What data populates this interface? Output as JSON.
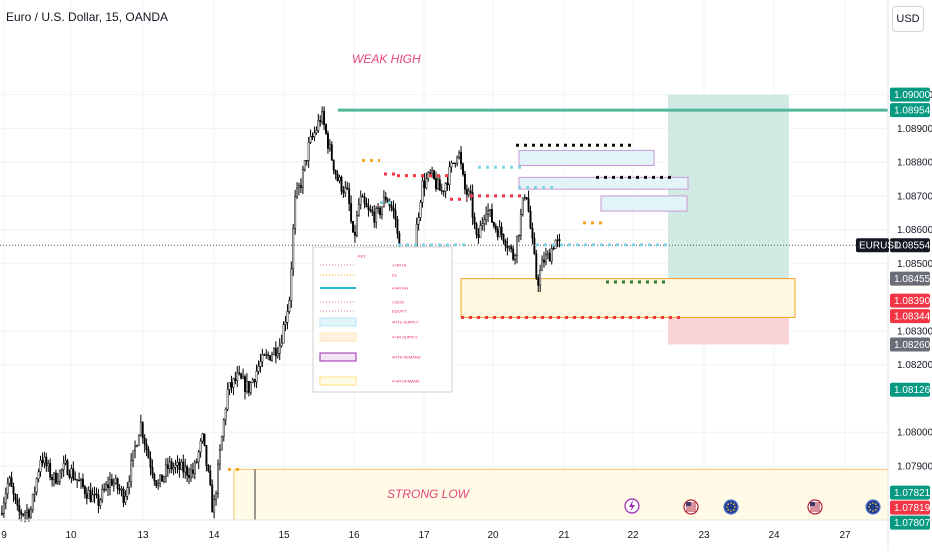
{
  "header": {
    "title": "Euro / U.S. Dollar, 15, OANDA",
    "currency_button": "USD"
  },
  "colors": {
    "green": "#089981",
    "red": "#f23645",
    "gray": "#6a6d78",
    "teal_zone": "#cfeae3",
    "red_zone": "#f9d4d7",
    "yellow_zone": "#fffbe6",
    "orange": "#f7a21b",
    "pink": "#e0457b",
    "purple": "#c79ad6",
    "light_blue": "#e3f4f8",
    "black": "#000000"
  },
  "chart_data": {
    "type": "candlestick",
    "symbol": "EURUSD",
    "ylim": [
      1.0774,
      1.0915
    ],
    "x_ticks": [
      "9",
      "10",
      "13",
      "14",
      "15",
      "16",
      "17",
      "20",
      "21",
      "22",
      "23",
      "24",
      "27"
    ],
    "y_ticks": [
      "1.09000",
      "1.08900",
      "1.08800",
      "1.08700",
      "1.08600",
      "1.08500",
      "1.08300",
      "1.08200",
      "1.08000",
      "1.07900"
    ],
    "price_tags": [
      {
        "label": "1.09000",
        "value": 1.09,
        "style": "green"
      },
      {
        "label": "1.08954",
        "value": 1.08954,
        "style": "green"
      },
      {
        "label": "1.08554",
        "value": 1.08554,
        "style": "black",
        "name": "EURUSD"
      },
      {
        "label": "1.08455",
        "value": 1.08455,
        "style": "gray"
      },
      {
        "label": "1.08390",
        "value": 1.0839,
        "style": "red"
      },
      {
        "label": "1.08344",
        "value": 1.08344,
        "style": "red"
      },
      {
        "label": "1.08260",
        "value": 1.0826,
        "style": "gray"
      },
      {
        "label": "1.08126",
        "value": 1.08126,
        "style": "green"
      },
      {
        "label": "1.07821",
        "value": 1.07821,
        "style": "green"
      },
      {
        "label": "1.07819",
        "value": 1.07819,
        "style": "red"
      },
      {
        "label": "1.07807",
        "value": 1.07807,
        "style": "green"
      }
    ],
    "annotations": [
      {
        "text": "WEAK HIGH"
      },
      {
        "text": "STRONG LOW"
      }
    ],
    "legend_entries": [
      "KEY",
      "1 HR HL",
      "D1",
      "4 HR HH",
      "1 BOS",
      "EQUITY",
      "4HTS SUPPLY",
      "4 HR SUPPLY",
      "4HTS DEMAND",
      "4 HR DEMAND"
    ],
    "small_label": "S",
    "current_price": 1.08554,
    "close_path": [
      [
        0.0,
        1.0776
      ],
      [
        0.01,
        1.0786
      ],
      [
        0.02,
        1.0776
      ],
      [
        0.035,
        1.0777
      ],
      [
        0.046,
        1.0793
      ],
      [
        0.06,
        1.0786
      ],
      [
        0.075,
        1.079
      ],
      [
        0.092,
        1.0784
      ],
      [
        0.11,
        1.0779
      ],
      [
        0.125,
        1.0786
      ],
      [
        0.14,
        1.0781
      ],
      [
        0.148,
        1.079
      ],
      [
        0.158,
        1.0803
      ],
      [
        0.168,
        1.0792
      ],
      [
        0.178,
        1.0784
      ],
      [
        0.19,
        1.079
      ],
      [
        0.205,
        1.0789
      ],
      [
        0.218,
        1.0788
      ],
      [
        0.228,
        1.0798
      ],
      [
        0.234,
        1.0788
      ],
      [
        0.24,
        1.0776
      ],
      [
        0.247,
        1.0792
      ],
      [
        0.256,
        1.0812
      ],
      [
        0.267,
        1.0816
      ],
      [
        0.28,
        1.0813
      ],
      [
        0.292,
        1.082
      ],
      [
        0.304,
        1.0823
      ],
      [
        0.315,
        1.0826
      ],
      [
        0.32,
        1.0832
      ],
      [
        0.326,
        1.084
      ],
      [
        0.332,
        1.0868
      ],
      [
        0.34,
        1.0875
      ],
      [
        0.348,
        1.0885
      ],
      [
        0.355,
        1.0889
      ],
      [
        0.362,
        1.0894
      ],
      [
        0.37,
        1.0885
      ],
      [
        0.38,
        1.0875
      ],
      [
        0.392,
        1.087
      ],
      [
        0.398,
        1.0856
      ],
      [
        0.405,
        1.0869
      ],
      [
        0.415,
        1.0865
      ],
      [
        0.425,
        1.0864
      ],
      [
        0.435,
        1.087
      ],
      [
        0.445,
        1.0864
      ],
      [
        0.452,
        1.0848
      ],
      [
        0.458,
        1.084
      ],
      [
        0.463,
        1.0845
      ],
      [
        0.468,
        1.0858
      ],
      [
        0.475,
        1.0873
      ],
      [
        0.485,
        1.0876
      ],
      [
        0.497,
        1.0871
      ],
      [
        0.508,
        1.0878
      ],
      [
        0.516,
        1.0884
      ],
      [
        0.523,
        1.0872
      ],
      [
        0.53,
        1.0869
      ],
      [
        0.537,
        1.0856
      ],
      [
        0.547,
        1.0867
      ],
      [
        0.557,
        1.0861
      ],
      [
        0.568,
        1.0858
      ],
      [
        0.578,
        1.0852
      ],
      [
        0.585,
        1.0861
      ],
      [
        0.592,
        1.0873
      ],
      [
        0.598,
        1.0859
      ],
      [
        0.605,
        1.0844
      ],
      [
        0.612,
        1.0851
      ],
      [
        0.618,
        1.0852
      ],
      [
        0.625,
        1.0857
      ],
      [
        0.63,
        1.0855
      ]
    ]
  }
}
